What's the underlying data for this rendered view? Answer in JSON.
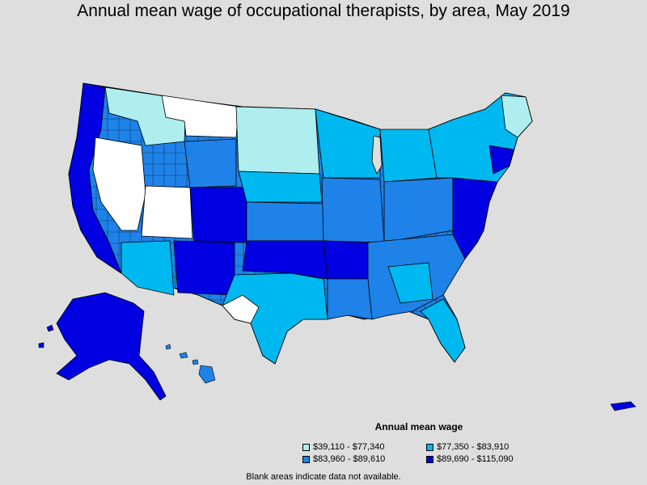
{
  "title": "Annual mean wage of occupational therapists, by area, May 2019",
  "legend": {
    "title": "Annual mean wage",
    "items": [
      {
        "label": "$39,110 - $77,340",
        "color": "#aeeeee"
      },
      {
        "label": "$77,350 - $83,910",
        "color": "#00b8f0"
      },
      {
        "label": "$83,960 - $89,610",
        "color": "#1e82e8"
      },
      {
        "label": "$89,690 - $115,090",
        "color": "#0000e0"
      }
    ]
  },
  "note": "Blank areas indicate data not available.",
  "colors": {
    "background": "#dedede",
    "no_data": "#ffffff",
    "border": "#000000"
  }
}
